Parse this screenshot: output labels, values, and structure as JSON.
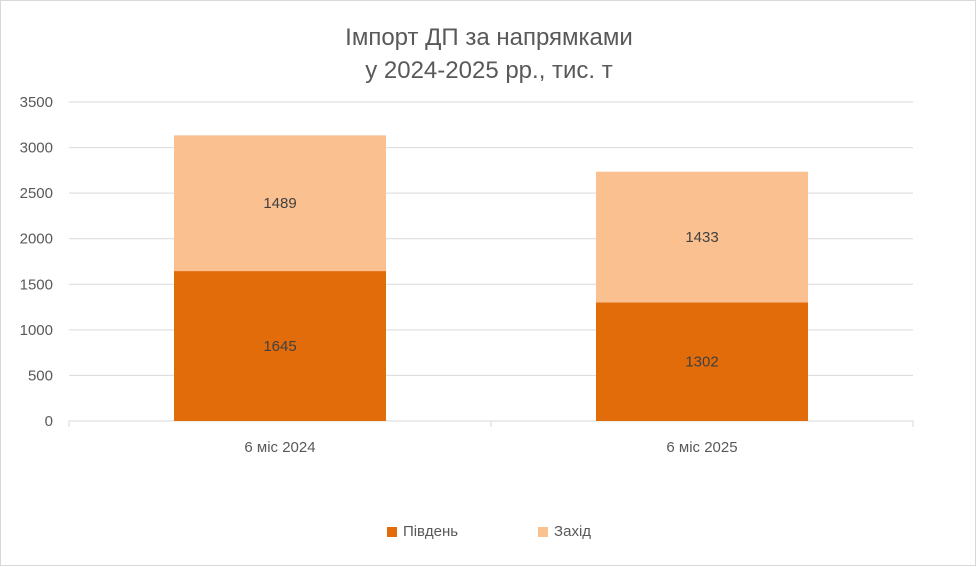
{
  "chart_data": {
    "type": "bar",
    "stacked": true,
    "title_lines": [
      "Імпорт ДП за напрямками",
      "у 2024-2025 рр., тис. т"
    ],
    "categories": [
      "6 міс 2024",
      "6 міс 2025"
    ],
    "series": [
      {
        "name": "Південь",
        "values": [
          1645,
          1302
        ],
        "color": "#E36C0A"
      },
      {
        "name": "Захід",
        "values": [
          1489,
          1433
        ],
        "color": "#FAC090"
      }
    ],
    "ylim": [
      0,
      3500
    ],
    "yticks": [
      "0",
      "500",
      "1000",
      "1500",
      "2000",
      "2500",
      "3000",
      "3500"
    ],
    "grid": true,
    "gridline_color": "#d9d9d9",
    "legend_position": "bottom"
  }
}
